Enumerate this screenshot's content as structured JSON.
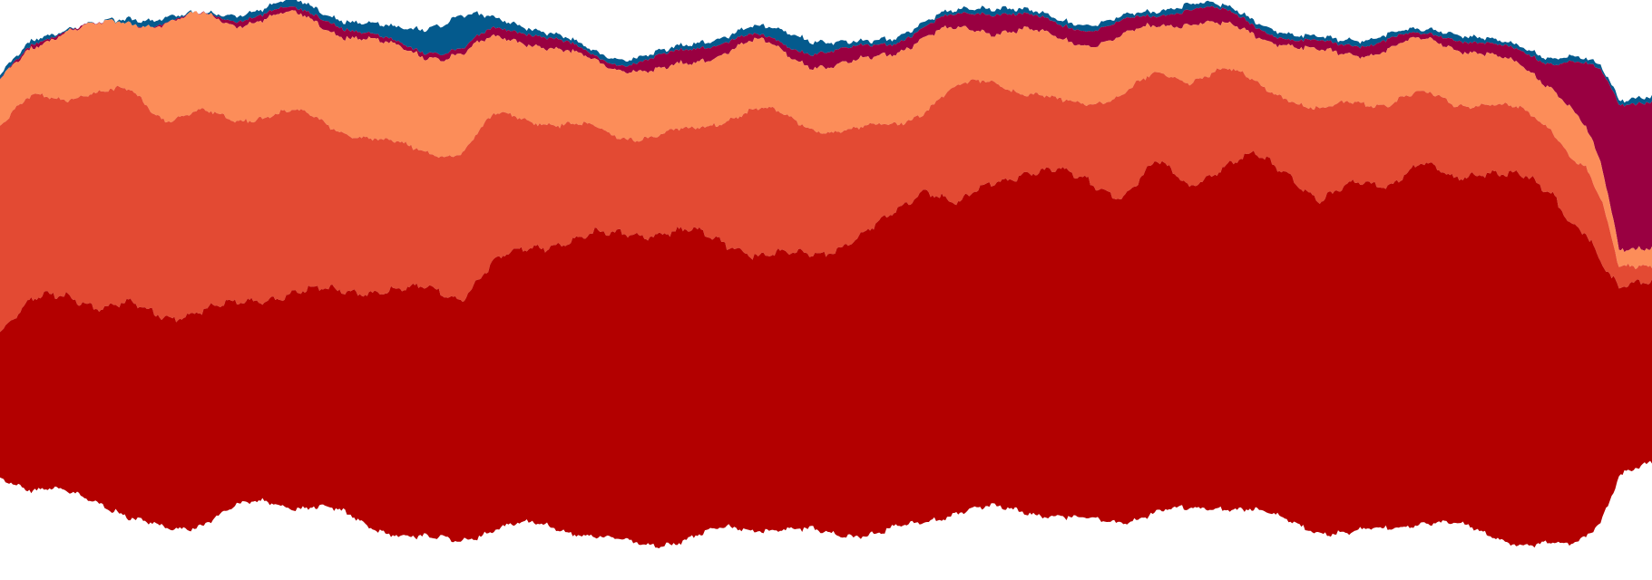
{
  "chart_data": {
    "type": "area",
    "title": "",
    "xlabel": "",
    "ylabel": "",
    "grid": false,
    "legend": "none",
    "x_range": [
      0,
      100
    ],
    "baseline": "wiggle",
    "colors": [
      "#b30000",
      "#e34a33",
      "#fc8d59",
      "#990041",
      "#045a8d"
    ],
    "x": [
      0,
      2,
      4,
      6,
      8,
      10,
      12,
      14,
      16,
      18,
      20,
      22,
      24,
      26,
      28,
      30,
      32,
      34,
      36,
      38,
      40,
      42,
      44,
      46,
      48,
      50,
      52,
      54,
      56,
      58,
      60,
      62,
      64,
      66,
      68,
      70,
      72,
      74,
      76,
      78,
      80,
      82,
      84,
      86,
      88,
      90,
      92,
      94,
      95,
      96,
      97,
      98,
      100
    ],
    "series": [
      {
        "values": [
          30,
          39,
          41,
          40,
          44,
          44,
          44,
          42,
          42,
          44,
          45,
          48,
          50,
          52,
          50,
          55,
          57,
          59,
          62,
          64,
          64,
          63,
          59,
          56,
          57,
          58,
          61,
          65,
          69,
          63,
          67,
          70,
          71,
          70,
          67,
          72,
          67,
          70,
          73,
          72,
          68,
          72,
          71,
          74,
          71,
          75,
          76,
          72,
          67,
          63,
          52,
          38,
          38
        ]
      },
      {
        "values": [
          42,
          42,
          41,
          44,
          44,
          41,
          41,
          38,
          38,
          37,
          34,
          32,
          30,
          28,
          30,
          30,
          27,
          24,
          22,
          20,
          20,
          21,
          26,
          30,
          28,
          25,
          22,
          19,
          16,
          24,
          22,
          16,
          14,
          17,
          21,
          18,
          22,
          20,
          15,
          16,
          18,
          17,
          17,
          14,
          16,
          14,
          13,
          14,
          14,
          13,
          12,
          4,
          4
        ]
      },
      {
        "values": [
          9,
          10,
          14,
          14,
          14,
          20,
          20,
          20,
          20,
          20,
          20,
          20,
          20,
          20,
          20,
          16,
          16,
          15,
          14,
          14,
          13,
          14,
          14,
          14,
          13,
          13,
          14,
          15,
          15,
          12,
          10,
          13,
          13,
          12,
          12,
          10,
          12,
          9,
          10,
          11,
          12,
          10,
          11,
          11,
          12,
          10,
          9,
          9,
          10,
          8,
          7,
          4,
          4
        ]
      },
      {
        "values": [
          0,
          1,
          0,
          0,
          0,
          0,
          0,
          1,
          1,
          1,
          2,
          1,
          1,
          1,
          1,
          2,
          2,
          2,
          1,
          1,
          3,
          3,
          2,
          1,
          2,
          3,
          3,
          2,
          2,
          3,
          4,
          3,
          3,
          3,
          3,
          2,
          3,
          3,
          2,
          1,
          2,
          2,
          2,
          1,
          2,
          2,
          3,
          5,
          9,
          13,
          20,
          30,
          30
        ]
      },
      {
        "values": [
          1,
          1,
          0,
          0,
          1,
          1,
          0,
          1,
          1,
          2,
          1,
          2,
          3,
          5,
          7,
          2,
          1,
          1,
          1,
          1,
          1,
          1,
          1,
          2,
          3,
          2,
          1,
          1,
          1,
          1,
          1,
          1,
          1,
          1,
          1,
          1,
          1,
          1,
          1,
          1,
          1,
          1,
          1,
          1,
          1,
          1,
          1,
          1,
          1,
          1,
          1,
          1,
          1
        ]
      }
    ]
  }
}
